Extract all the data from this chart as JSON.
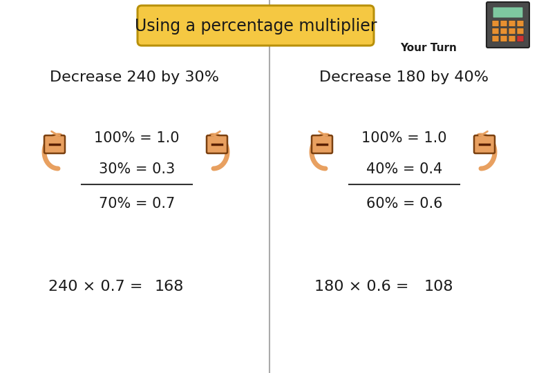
{
  "title": "Using a percentage multiplier",
  "your_turn": "Your Turn",
  "bg_color": "#ffffff",
  "title_bg": "#f5c842",
  "title_border": "#b8900a",
  "left": {
    "heading": "Decrease 240 by 30%",
    "line1": "100% = 1.0",
    "line2": "30% = 0.3",
    "line3": "70% = 0.7",
    "formula": "240 × 0.7 =",
    "answer": "168"
  },
  "right": {
    "heading": "Decrease 180 by 40%",
    "line1": "100% = 1.0",
    "line2": "40% = 0.4",
    "line3": "60% = 0.6",
    "formula": "180 × 0.6 =",
    "answer": "108"
  },
  "arrow_fill": "#e8a060",
  "minus_fill": "#e8a060",
  "minus_border": "#7a4010",
  "font_color": "#1a1a1a",
  "heading_fontsize": 16,
  "text_fontsize": 15,
  "formula_fontsize": 16,
  "line_color": "#333333",
  "divider_color": "#aaaaaa",
  "calc_body": "#4a4a4a",
  "calc_screen": "#7ec8a0",
  "calc_btn_orange": "#e89030",
  "calc_btn_red": "#cc3333"
}
